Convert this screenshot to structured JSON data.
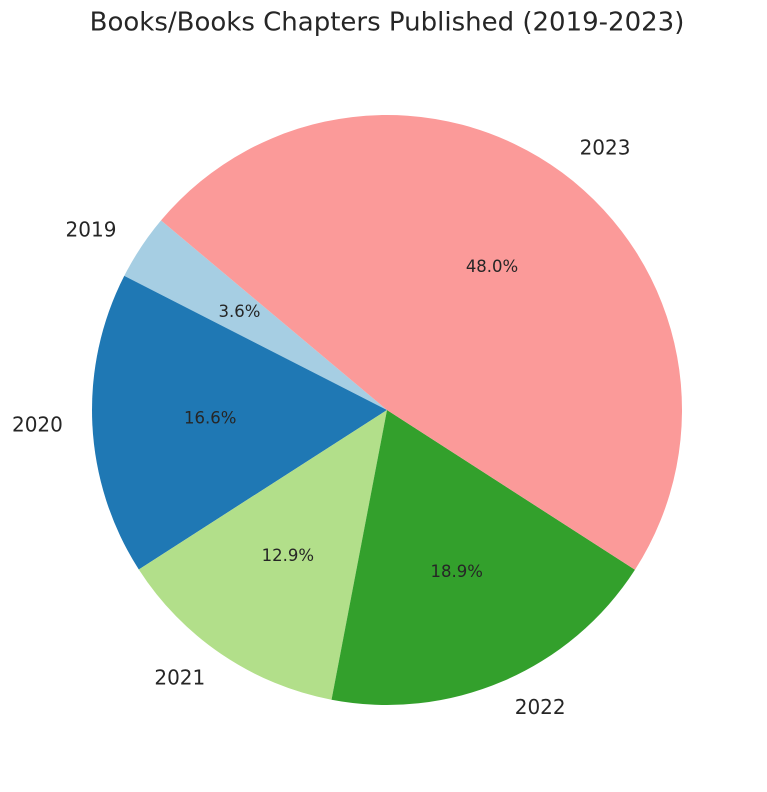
{
  "chart_data": {
    "type": "pie",
    "title": "Books/Books Chapters Published (2019-2023)",
    "categories": [
      "2019",
      "2020",
      "2021",
      "2022",
      "2023"
    ],
    "values": [
      3.6,
      16.6,
      12.9,
      18.9,
      48.0
    ],
    "value_labels": [
      "3.6%",
      "16.6%",
      "12.9%",
      "18.9%",
      "48.0%"
    ],
    "colors": [
      "#a6cee3",
      "#1f78b4",
      "#b2df8a",
      "#33a02c",
      "#fb9a99"
    ]
  }
}
